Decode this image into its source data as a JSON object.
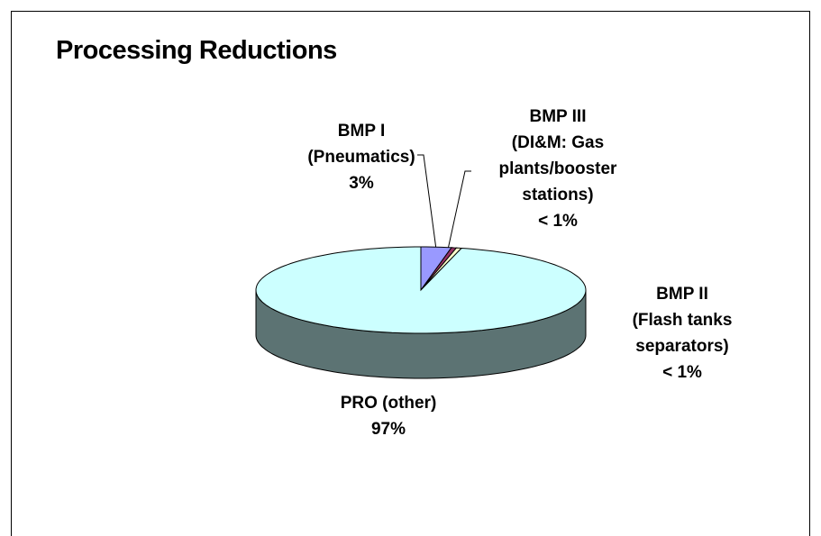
{
  "chart_data": {
    "type": "pie",
    "title": "Processing Reductions",
    "categories": [
      "BMP I\n(Pneumatics)",
      "BMP III\n(DI&M: Gas\nplants/booster\nstations)",
      "BMP II\n(Flash tanks\nseparators)",
      "PRO (other)"
    ],
    "values": [
      3,
      0.5,
      0.5,
      97
    ],
    "value_labels": [
      "3%",
      "< 1%",
      "< 1%",
      "97%"
    ],
    "colors": [
      "#9999ff",
      "#993366",
      "#ffffcc",
      "#ccffff"
    ],
    "three_d": true
  }
}
